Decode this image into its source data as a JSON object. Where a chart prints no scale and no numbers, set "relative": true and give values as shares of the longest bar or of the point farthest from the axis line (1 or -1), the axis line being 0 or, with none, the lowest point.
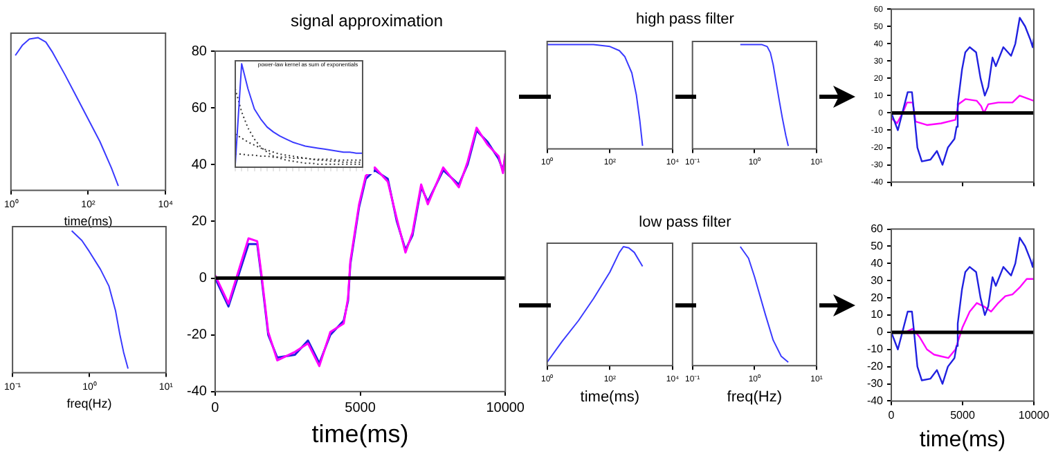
{
  "chart_data": [
    {
      "type": "line",
      "xlabel": "time(ms)",
      "relative": true,
      "log": "x",
      "xlim": [
        1,
        10000
      ],
      "xticks": [
        {
          "value": 1,
          "label": "10⁰"
        },
        {
          "value": 100,
          "label": "10²"
        },
        {
          "value": 10000,
          "label": "10⁴"
        }
      ],
      "tick_labels": "x",
      "series": [
        {
          "color": "#3a3aff",
          "x": [
            1.3,
            2,
            3,
            5,
            8,
            12,
            25,
            50,
            100,
            200,
            400,
            600
          ],
          "values": [
            0.88,
            0.95,
            0.99,
            1,
            0.97,
            0.9,
            0.75,
            0.6,
            0.45,
            0.3,
            0.12,
            0
          ]
        }
      ]
    },
    {
      "type": "line",
      "xlabel": "freq(Hz)",
      "relative": true,
      "log": "x",
      "xlim": [
        0.1,
        10
      ],
      "xticks": [
        {
          "value": 0.1,
          "label": "10⁻¹"
        },
        {
          "value": 1,
          "label": "10⁰"
        },
        {
          "value": 10,
          "label": "10¹"
        }
      ],
      "tick_labels": "x",
      "series": [
        {
          "color": "#3a3aff",
          "x": [
            0.59,
            0.8,
            1,
            1.4,
            1.8,
            2.2,
            2.5,
            2.8,
            3.2
          ],
          "values": [
            1,
            0.93,
            0.85,
            0.72,
            0.6,
            0.42,
            0.25,
            0.12,
            0
          ]
        }
      ]
    },
    {
      "type": "line",
      "title": "signal approximation",
      "xlabel": "time(ms)",
      "xlim": [
        0,
        10000
      ],
      "xticks": [
        0,
        5000,
        10000
      ],
      "ylim": [
        -40,
        80
      ],
      "yticks": [
        -40,
        -20,
        0,
        20,
        40,
        60,
        80
      ],
      "x": [
        0,
        460,
        1150,
        1450,
        1600,
        1830,
        2140,
        2750,
        3200,
        3590,
        3970,
        4430,
        4580,
        4660,
        4960,
        5190,
        5500,
        5950,
        6260,
        6560,
        6800,
        7100,
        7330,
        7860,
        8400,
        8700,
        9010,
        9390,
        9770,
        9920,
        10000
      ],
      "series": [
        {
          "color": "#ff00ff",
          "values": [
            1,
            -9,
            14,
            13,
            1,
            -19,
            -29,
            -26,
            -23,
            -31,
            -19,
            -16,
            -7,
            6,
            26,
            36,
            39,
            34,
            21,
            9,
            16,
            33,
            26,
            39,
            32,
            41,
            53,
            47,
            43,
            37,
            44
          ]
        },
        {
          "color": "#2020e0",
          "values": [
            0,
            -10,
            12,
            12,
            0,
            -20,
            -28,
            -27,
            -22,
            -30,
            -20,
            -15,
            -8,
            5,
            25,
            35,
            38,
            35,
            20,
            10,
            15,
            32,
            27,
            38,
            33,
            40,
            52,
            48,
            42,
            38,
            43
          ]
        }
      ],
      "ref_lines": [
        {
          "axis": "y",
          "value": 0,
          "color": "#000000"
        }
      ]
    },
    {
      "type": "line",
      "title": "power-law kernel as sum of exponentials",
      "relative": true,
      "tick_labels": false,
      "categories": [
        null,
        null,
        null,
        null,
        null,
        null,
        null,
        null,
        null,
        null,
        null,
        null,
        null,
        null,
        null,
        null,
        null,
        null,
        null,
        null,
        null
      ],
      "series": [
        {
          "color": "#3a3aff",
          "values": [
            0,
            1,
            0.75,
            0.55,
            0.45,
            0.37,
            0.32,
            0.28,
            0.25,
            0.22,
            0.2,
            0.18,
            0.17,
            0.16,
            0.15,
            0.14,
            0.13,
            0.12,
            0.12,
            0.11,
            0.11
          ]
        },
        {
          "color": "#333333",
          "line_style": "dotted",
          "values": [
            0.75,
            0.52,
            0.36,
            0.25,
            0.17,
            0.12,
            0.08,
            0.06,
            0.04,
            0.03,
            0.02,
            0.01,
            0.01,
            0,
            0,
            0,
            0,
            0,
            0,
            0,
            0
          ]
        },
        {
          "color": "#333333",
          "line_style": "dotted",
          "values": [
            0.3,
            0.26,
            0.22,
            0.19,
            0.16,
            0.14,
            0.12,
            0.1,
            0.09,
            0.08,
            0.07,
            0.06,
            0.05,
            0.04,
            0.04,
            0.03,
            0.03,
            0.02,
            0.02,
            0.02,
            0.02
          ]
        },
        {
          "color": "#333333",
          "line_style": "dotted",
          "values": [
            0.1,
            0.1,
            0.09,
            0.09,
            0.08,
            0.08,
            0.07,
            0.07,
            0.07,
            0.06,
            0.06,
            0.06,
            0.05,
            0.05,
            0.05,
            0.05,
            0.04,
            0.04,
            0.04,
            0.04,
            0.04
          ]
        }
      ]
    },
    {
      "type": "line",
      "title": "high pass filter",
      "relative": true,
      "log": "x",
      "xlim": [
        1,
        10000
      ],
      "xticks": [
        {
          "value": 1,
          "label": "10⁰"
        },
        {
          "value": 100,
          "label": "10²"
        },
        {
          "value": 10000,
          "label": "10⁴"
        }
      ],
      "tick_labels": "x",
      "series": [
        {
          "color": "#3a3aff",
          "x": [
            1,
            10,
            30,
            100,
            200,
            300,
            500,
            700,
            900,
            1100
          ],
          "values": [
            1,
            1,
            1,
            0.98,
            0.94,
            0.88,
            0.72,
            0.5,
            0.25,
            0
          ]
        }
      ]
    },
    {
      "type": "line",
      "relative": true,
      "log": "x",
      "xlim": [
        0.1,
        10
      ],
      "xticks": [
        {
          "value": 0.1,
          "label": "10⁻¹"
        },
        {
          "value": 1,
          "label": "10⁰"
        },
        {
          "value": 10,
          "label": "10¹"
        }
      ],
      "tick_labels": "x",
      "series": [
        {
          "color": "#3a3aff",
          "x": [
            0.59,
            1,
            1.3,
            1.6,
            1.8,
            2,
            2.2,
            2.5,
            2.8,
            3.2,
            3.5
          ],
          "values": [
            1,
            1,
            1,
            0.98,
            0.92,
            0.8,
            0.65,
            0.45,
            0.28,
            0.1,
            0
          ]
        }
      ]
    },
    {
      "type": "line",
      "title": "low pass filter",
      "xlabel": "time(ms)",
      "relative": true,
      "log": "x",
      "xlim": [
        1,
        10000
      ],
      "xticks": [
        {
          "value": 1,
          "label": "10⁰"
        },
        {
          "value": 100,
          "label": "10²"
        },
        {
          "value": 10000,
          "label": "10⁴"
        }
      ],
      "tick_labels": "x",
      "series": [
        {
          "color": "#3a3aff",
          "x": [
            1,
            3,
            10,
            30,
            100,
            200,
            270,
            400,
            600,
            1100
          ],
          "values": [
            0,
            0.18,
            0.36,
            0.55,
            0.78,
            0.95,
            1,
            0.99,
            0.95,
            0.83
          ]
        }
      ]
    },
    {
      "type": "line",
      "xlabel": "freq(Hz)",
      "relative": true,
      "log": "x",
      "xlim": [
        0.1,
        10
      ],
      "xticks": [
        {
          "value": 0.1,
          "label": "10⁻¹"
        },
        {
          "value": 1,
          "label": "10⁰"
        },
        {
          "value": 10,
          "label": "10¹"
        }
      ],
      "tick_labels": "x",
      "series": [
        {
          "color": "#3a3aff",
          "x": [
            0.59,
            0.8,
            1,
            1.5,
            2,
            2.7,
            3.5
          ],
          "values": [
            1,
            0.9,
            0.74,
            0.41,
            0.19,
            0.05,
            0
          ]
        }
      ]
    },
    {
      "type": "line",
      "xlim": [
        0,
        10000
      ],
      "xticks": [
        {
          "value": 0,
          "label": null
        },
        {
          "value": 5000,
          "label": null
        },
        {
          "value": 10000,
          "label": null
        }
      ],
      "ylim": [
        -40,
        60
      ],
      "yticks": [
        -40,
        -30,
        -20,
        -10,
        0,
        10,
        20,
        30,
        40,
        50,
        60
      ],
      "tick_labels": "y",
      "series": [
        {
          "color": "#2020e0",
          "x": [
            0,
            460,
            1150,
            1450,
            1600,
            1830,
            2140,
            2750,
            3200,
            3590,
            3970,
            4430,
            4580,
            4660,
            4960,
            5190,
            5500,
            5950,
            6260,
            6560,
            6800,
            7100,
            7330,
            7860,
            8400,
            8700,
            9010,
            9390,
            9770,
            9920,
            10000
          ],
          "values": [
            0,
            -10,
            12,
            12,
            0,
            -20,
            -28,
            -27,
            -22,
            -30,
            -20,
            -15,
            -8,
            5,
            25,
            35,
            38,
            35,
            20,
            10,
            15,
            32,
            27,
            38,
            33,
            40,
            55,
            50,
            42,
            38,
            43
          ]
        },
        {
          "color": "#ff00ff",
          "x": [
            0,
            400,
            800,
            1100,
            1500,
            1700,
            2500,
            3500,
            4500,
            4700,
            5200,
            6000,
            6300,
            6500,
            6800,
            7500,
            8500,
            9000,
            10000
          ],
          "values": [
            -3,
            -6,
            0,
            6,
            6,
            -5,
            -7,
            -6,
            -4,
            5,
            8,
            7,
            4,
            0,
            5,
            6,
            6,
            10,
            7
          ]
        }
      ],
      "ref_lines": [
        {
          "axis": "y",
          "value": 0,
          "color": "#000000"
        }
      ]
    },
    {
      "type": "line",
      "xlabel": "time(ms)",
      "xlim": [
        0,
        10000
      ],
      "xticks": [
        0,
        5000,
        10000
      ],
      "ylim": [
        -40,
        60
      ],
      "yticks": [
        -40,
        -30,
        -20,
        -10,
        0,
        10,
        20,
        30,
        40,
        50,
        60
      ],
      "series": [
        {
          "color": "#2020e0",
          "x": [
            0,
            460,
            1150,
            1450,
            1600,
            1830,
            2140,
            2750,
            3200,
            3590,
            3970,
            4430,
            4580,
            4660,
            4960,
            5190,
            5500,
            5950,
            6260,
            6560,
            6800,
            7100,
            7330,
            7860,
            8400,
            8700,
            9010,
            9390,
            9770,
            9920,
            10000
          ],
          "values": [
            0,
            -10,
            12,
            12,
            0,
            -20,
            -28,
            -27,
            -22,
            -30,
            -20,
            -15,
            -8,
            5,
            25,
            35,
            38,
            35,
            20,
            10,
            15,
            32,
            27,
            38,
            33,
            40,
            55,
            50,
            42,
            38,
            43
          ]
        },
        {
          "color": "#ff00ff",
          "x": [
            0,
            1000,
            1500,
            2000,
            2500,
            3000,
            3500,
            4000,
            4500,
            5000,
            5500,
            6000,
            6500,
            7000,
            7500,
            8000,
            8500,
            9000,
            9500,
            10000
          ],
          "values": [
            0,
            0,
            2,
            -3,
            -10,
            -13,
            -14,
            -15,
            -10,
            3,
            12,
            17,
            15,
            12,
            17,
            21,
            22,
            26,
            31,
            31
          ]
        }
      ],
      "ref_lines": [
        {
          "axis": "y",
          "value": 0,
          "color": "#000000"
        }
      ]
    }
  ]
}
